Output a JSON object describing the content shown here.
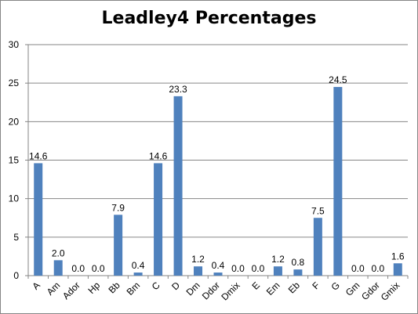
{
  "chart_data": {
    "type": "bar",
    "title": "Leadley4 Percentages",
    "xlabel": "",
    "ylabel": "",
    "ylim": [
      0,
      30
    ],
    "yticks": [
      0,
      5,
      10,
      15,
      20,
      25,
      30
    ],
    "grid": true,
    "legend": "none",
    "bar_color": "#4F81BD",
    "categories": [
      "A",
      "Am",
      "Ador",
      "Hp",
      "Bb",
      "Bm",
      "C",
      "D",
      "Dm",
      "Ddor",
      "Dmix",
      "E",
      "Em",
      "Eb",
      "F",
      "G",
      "Gm",
      "Gdor",
      "Gmix"
    ],
    "values": [
      14.6,
      2.0,
      0.0,
      0.0,
      7.9,
      0.4,
      14.6,
      23.3,
      1.2,
      0.4,
      0.0,
      0.0,
      1.2,
      0.8,
      7.5,
      24.5,
      0.0,
      0.0,
      1.6
    ],
    "data_labels": [
      "14.6",
      "2.0",
      "0.0",
      "0.0",
      "7.9",
      "0.4",
      "14.6",
      "23.3",
      "1.2",
      "0.4",
      "0.0",
      "0.0",
      "1.2",
      "0.8",
      "7.5",
      "24.5",
      "0.0",
      "0.0",
      "1.6"
    ]
  }
}
